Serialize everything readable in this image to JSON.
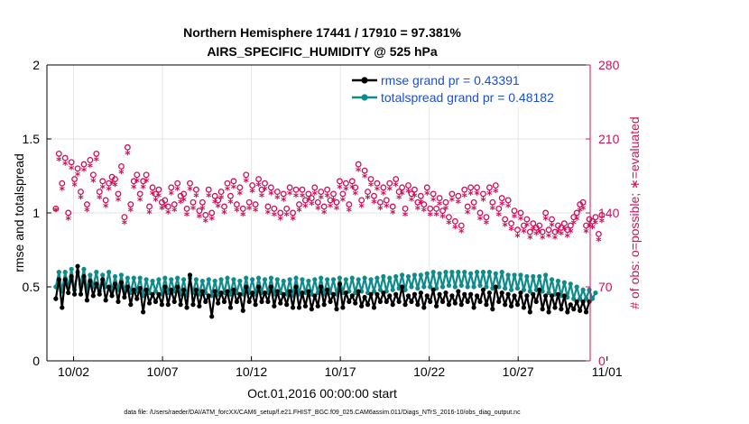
{
  "chart_data": {
    "type": "line",
    "title_line1": "Northern Hemisphere 17441 / 17910 = 97.381%",
    "title_line2": "AIRS_SPECIFIC_HUMIDITY @ 525 hPa",
    "ylabel_left": "rmse and totalspread",
    "ylabel_right": "# of obs: o=possible; ∗=evaluated",
    "xlabel": "Oct.01,2016 00:00:00 start",
    "footnote": "data file: /Users/raeder/DAI/ATM_forcXX/CAM6_setup/f.e21.FHIST_BGC.f09_025.CAM6assim.011/Diags_NTrS_2016-10/obs_diag_output.nc",
    "ylim_left": [
      0,
      2
    ],
    "ylim_right": [
      0,
      280
    ],
    "xlim": [
      0.5,
      31.05
    ],
    "yticks_left": [
      0,
      0.5,
      1,
      1.5,
      2
    ],
    "yticks_left_labels": [
      "0",
      "0.5",
      "1",
      "1.5",
      "2"
    ],
    "yticks_right": [
      0,
      70,
      140,
      210,
      280
    ],
    "yticks_right_labels": [
      "0",
      "70",
      "140",
      "210",
      "280"
    ],
    "xticks": [
      2,
      7,
      12,
      17,
      22,
      27,
      32
    ],
    "xticks_labels": [
      "10/02",
      "10/07",
      "10/12",
      "10/17",
      "10/22",
      "10/27",
      "11/01"
    ],
    "colors": {
      "rmse": "#000000",
      "spread": "#0e8c8c",
      "obs": "#d0105a",
      "legend_text": "#1a4fd6"
    },
    "series": [
      {
        "name": "rmse",
        "legend": "rmse grand pr = 0.43391",
        "axis": "left",
        "values": [
          0.42,
          0.55,
          0.36,
          0.55,
          0.46,
          0.57,
          0.45,
          0.64,
          0.45,
          0.57,
          0.41,
          0.54,
          0.44,
          0.52,
          0.45,
          0.55,
          0.41,
          0.5,
          0.44,
          0.52,
          0.4,
          0.53,
          0.43,
          0.5,
          0.38,
          0.48,
          0.42,
          0.49,
          0.33,
          0.48,
          0.39,
          0.45,
          0.4,
          0.45,
          0.38,
          0.5,
          0.38,
          0.48,
          0.4,
          0.5,
          0.38,
          0.48,
          0.36,
          0.58,
          0.38,
          0.48,
          0.37,
          0.47,
          0.4,
          0.44,
          0.3,
          0.47,
          0.39,
          0.46,
          0.4,
          0.47,
          0.36,
          0.48,
          0.4,
          0.45,
          0.34,
          0.5,
          0.4,
          0.46,
          0.38,
          0.5,
          0.4,
          0.46,
          0.4,
          0.5,
          0.37,
          0.47,
          0.39,
          0.45,
          0.38,
          0.47,
          0.36,
          0.5,
          0.36,
          0.46,
          0.37,
          0.47,
          0.35,
          0.44,
          0.37,
          0.5,
          0.38,
          0.48,
          0.4,
          0.45,
          0.35,
          0.52,
          0.36,
          0.46,
          0.4,
          0.44,
          0.39,
          0.47,
          0.37,
          0.43,
          0.38,
          0.45,
          0.36,
          0.45,
          0.4,
          0.46,
          0.4,
          0.44,
          0.38,
          0.45,
          0.4,
          0.5,
          0.38,
          0.44,
          0.4,
          0.45,
          0.38,
          0.46,
          0.36,
          0.44,
          0.4,
          0.48,
          0.37,
          0.45,
          0.4,
          0.46,
          0.38,
          0.44,
          0.39,
          0.47,
          0.38,
          0.45,
          0.4,
          0.45,
          0.36,
          0.44,
          0.4,
          0.48,
          0.38,
          0.46,
          0.35,
          0.5,
          0.4,
          0.46,
          0.38,
          0.45,
          0.37,
          0.44,
          0.38,
          0.46,
          0.36,
          0.44,
          0.33,
          0.45,
          0.4,
          0.48,
          0.35,
          0.44,
          0.33,
          0.44,
          0.36,
          0.45,
          0.35,
          0.44,
          0.33,
          0.38,
          0.35,
          0.4,
          0.34,
          0.4,
          0.33,
          0.4
        ]
      },
      {
        "name": "totalspread",
        "legend": "totalspread grand pr = 0.48182",
        "axis": "left",
        "values": [
          0.5,
          0.6,
          0.47,
          0.6,
          0.5,
          0.62,
          0.48,
          0.6,
          0.52,
          0.62,
          0.48,
          0.58,
          0.5,
          0.6,
          0.47,
          0.58,
          0.5,
          0.6,
          0.47,
          0.57,
          0.48,
          0.58,
          0.47,
          0.56,
          0.46,
          0.56,
          0.47,
          0.56,
          0.44,
          0.55,
          0.46,
          0.54,
          0.47,
          0.55,
          0.45,
          0.56,
          0.46,
          0.55,
          0.47,
          0.56,
          0.45,
          0.55,
          0.44,
          0.56,
          0.46,
          0.55,
          0.45,
          0.54,
          0.46,
          0.55,
          0.44,
          0.54,
          0.45,
          0.55,
          0.46,
          0.56,
          0.45,
          0.55,
          0.46,
          0.54,
          0.45,
          0.56,
          0.46,
          0.55,
          0.45,
          0.56,
          0.46,
          0.55,
          0.46,
          0.56,
          0.45,
          0.55,
          0.46,
          0.54,
          0.45,
          0.55,
          0.44,
          0.56,
          0.45,
          0.55,
          0.46,
          0.54,
          0.45,
          0.55,
          0.46,
          0.56,
          0.45,
          0.55,
          0.46,
          0.55,
          0.45,
          0.56,
          0.46,
          0.55,
          0.47,
          0.56,
          0.46,
          0.55,
          0.47,
          0.56,
          0.46,
          0.55,
          0.47,
          0.56,
          0.48,
          0.57,
          0.47,
          0.56,
          0.48,
          0.57,
          0.49,
          0.58,
          0.48,
          0.57,
          0.5,
          0.58,
          0.49,
          0.58,
          0.5,
          0.59,
          0.5,
          0.6,
          0.49,
          0.59,
          0.5,
          0.6,
          0.51,
          0.6,
          0.5,
          0.6,
          0.51,
          0.6,
          0.5,
          0.59,
          0.5,
          0.6,
          0.51,
          0.6,
          0.5,
          0.6,
          0.49,
          0.59,
          0.5,
          0.6,
          0.49,
          0.58,
          0.48,
          0.58,
          0.49,
          0.58,
          0.48,
          0.57,
          0.47,
          0.57,
          0.48,
          0.57,
          0.47,
          0.58,
          0.46,
          0.55,
          0.45,
          0.54,
          0.44,
          0.53,
          0.43,
          0.52,
          0.42,
          0.5,
          0.42,
          0.48,
          0.42,
          0.48,
          0.42,
          0.46
        ]
      },
      {
        "name": "obs_possible",
        "axis": "right",
        "marker": "o",
        "values": [
          144,
          196,
          168,
          192,
          140,
          188,
          172,
          182,
          160,
          186,
          148,
          190,
          176,
          196,
          160,
          170,
          152,
          168,
          174,
          172,
          158,
          184,
          136,
          202,
          148,
          170,
          176,
          158,
          170,
          176,
          146,
          164,
          158,
          162,
          150,
          152,
          146,
          164,
          148,
          168,
          156,
          158,
          144,
          168,
          150,
          162,
          142,
          150,
          138,
          162,
          140,
          156,
          152,
          160,
          146,
          168,
          156,
          170,
          148,
          164,
          144,
          176,
          150,
          166,
          148,
          172,
          162,
          168,
          146,
          164,
          144,
          160,
          140,
          158,
          144,
          164,
          140,
          162,
          148,
          162,
          152,
          158,
          154,
          164,
          150,
          160,
          146,
          162,
          152,
          158,
          150,
          170,
          158,
          168,
          148,
          170,
          164,
          186,
          152,
          180,
          160,
          172,
          156,
          168,
          150,
          164,
          152,
          168,
          146,
          172,
          160,
          164,
          144,
          166,
          158,
          162,
          150,
          156,
          148,
          164,
          144,
          158,
          144,
          154,
          142,
          150,
          136,
          158,
          132,
          156,
          128,
          162,
          146,
          164,
          150,
          164,
          140,
          158,
          136,
          164,
          150,
          166,
          144,
          154,
          134,
          152,
          130,
          142,
          124,
          140,
          128,
          134,
          122,
          130,
          126,
          128,
          122,
          140,
          124,
          134,
          122,
          128,
          126,
          130,
          124,
          128,
          136,
          140,
          148,
          150,
          128,
          134,
          132,
          136,
          120,
          138
        ]
      },
      {
        "name": "obs_evaluated",
        "axis": "right",
        "marker": "*",
        "values": [
          142,
          190,
          162,
          186,
          134,
          182,
          166,
          176,
          154,
          180,
          142,
          184,
          170,
          190,
          154,
          164,
          146,
          162,
          168,
          166,
          152,
          178,
          130,
          196,
          142,
          164,
          170,
          152,
          164,
          170,
          140,
          158,
          152,
          156,
          144,
          146,
          140,
          158,
          142,
          162,
          150,
          152,
          138,
          162,
          144,
          156,
          136,
          144,
          132,
          156,
          134,
          150,
          146,
          154,
          140,
          162,
          150,
          164,
          142,
          158,
          138,
          170,
          144,
          160,
          142,
          166,
          156,
          162,
          140,
          158,
          138,
          154,
          134,
          152,
          138,
          158,
          134,
          156,
          142,
          156,
          146,
          152,
          148,
          158,
          144,
          154,
          140,
          156,
          146,
          152,
          144,
          164,
          152,
          162,
          142,
          164,
          158,
          180,
          146,
          174,
          154,
          166,
          150,
          162,
          144,
          158,
          146,
          162,
          140,
          166,
          154,
          158,
          138,
          160,
          152,
          156,
          144,
          150,
          142,
          158,
          138,
          152,
          138,
          148,
          136,
          144,
          130,
          152,
          126,
          150,
          122,
          156,
          140,
          158,
          144,
          158,
          134,
          152,
          130,
          158,
          144,
          160,
          138,
          148,
          128,
          146,
          124,
          136,
          118,
          134,
          122,
          128,
          116,
          124,
          120,
          122,
          116,
          134,
          118,
          128,
          116,
          122,
          120,
          124,
          118,
          122,
          130,
          134,
          142,
          144,
          122,
          128,
          126,
          130,
          114,
          132
        ]
      }
    ]
  }
}
